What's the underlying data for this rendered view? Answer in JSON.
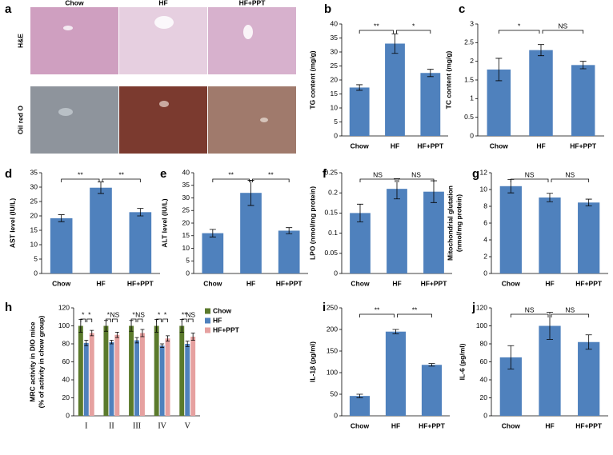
{
  "panel_a": {
    "label": "a",
    "columns": [
      "Chow",
      "HF",
      "HF+PPT"
    ],
    "rows": [
      "H&E",
      "Oil red O"
    ]
  },
  "chart_data": [
    {
      "type": "bar",
      "label": "b",
      "ylabel": "TG content (mg/g)",
      "categories": [
        "Chow",
        "HF",
        "HF+PPT"
      ],
      "values": [
        17.3,
        33,
        22.5
      ],
      "errors": [
        1,
        3.5,
        1.3
      ],
      "color": "#4f81bd",
      "ylim": [
        0,
        40
      ],
      "yticks": [
        0,
        5,
        10,
        15,
        20,
        25,
        30,
        35,
        40
      ],
      "significance": [
        "**",
        "*"
      ]
    },
    {
      "type": "bar",
      "label": "c",
      "ylabel": "TC content (mg/g)",
      "categories": [
        "Chow",
        "HF",
        "HF+PPT"
      ],
      "values": [
        1.78,
        2.3,
        1.9
      ],
      "errors": [
        0.3,
        0.15,
        0.1
      ],
      "color": "#4f81bd",
      "ylim": [
        0,
        3
      ],
      "yticks": [
        0,
        0.5,
        1,
        1.5,
        2,
        2.5,
        3
      ],
      "significance": [
        "*",
        "NS"
      ]
    },
    {
      "type": "bar",
      "label": "d",
      "ylabel": "AST level (IU/L)",
      "categories": [
        "Chow",
        "HF",
        "HF+PPT"
      ],
      "values": [
        19.2,
        29.8,
        21.3
      ],
      "errors": [
        1.2,
        2,
        1.3
      ],
      "color": "#4f81bd",
      "ylim": [
        0,
        35
      ],
      "yticks": [
        0,
        5,
        10,
        15,
        20,
        25,
        30,
        35
      ],
      "significance": [
        "**",
        "**"
      ]
    },
    {
      "type": "bar",
      "label": "e",
      "ylabel": "ALT level (IU/L)",
      "categories": [
        "Chow",
        "HF",
        "HF+PPT"
      ],
      "values": [
        16,
        32,
        17
      ],
      "errors": [
        1.5,
        5,
        1.2
      ],
      "color": "#4f81bd",
      "ylim": [
        0,
        40
      ],
      "yticks": [
        0,
        5,
        10,
        15,
        20,
        25,
        30,
        35,
        40
      ],
      "significance": [
        "**",
        "**"
      ]
    },
    {
      "type": "bar",
      "label": "f",
      "ylabel": "LPO (nmol/mg protein)",
      "categories": [
        "Chow",
        "HF",
        "HF+PPT"
      ],
      "values": [
        0.15,
        0.21,
        0.203
      ],
      "errors": [
        0.022,
        0.025,
        0.027
      ],
      "color": "#4f81bd",
      "ylim": [
        0,
        0.25
      ],
      "yticks": [
        0,
        0.05,
        0.1,
        0.15,
        0.2,
        0.25
      ],
      "significance": [
        "NS",
        "NS"
      ]
    },
    {
      "type": "bar",
      "label": "g",
      "ylabel": [
        "Mitochondrial glutation",
        "(nmol/mg protein)"
      ],
      "categories": [
        "Chow",
        "HF",
        "HF+PPT"
      ],
      "values": [
        10.4,
        9.05,
        8.45
      ],
      "errors": [
        0.8,
        0.5,
        0.4
      ],
      "color": "#4f81bd",
      "ylim": [
        0,
        12
      ],
      "yticks": [
        0,
        2,
        4,
        6,
        8,
        10,
        12
      ],
      "significance": [
        "NS",
        "NS"
      ]
    },
    {
      "type": "grouped_bar",
      "label": "h",
      "ylabel": [
        "MRC activity in DIO mice",
        "(% of activity in chow group)"
      ],
      "categories": [
        "I",
        "II",
        "III",
        "IV",
        "V"
      ],
      "series": [
        {
          "name": "Chow",
          "color": "#5b7a2c",
          "values": [
            100,
            100,
            100,
            100,
            100
          ],
          "errors": [
            7,
            6,
            6,
            7,
            7
          ]
        },
        {
          "name": "HF",
          "color": "#4f81bd",
          "values": [
            81,
            82,
            84,
            78,
            80
          ],
          "errors": [
            3,
            2,
            3,
            2,
            3
          ]
        },
        {
          "name": "HF+PPT",
          "color": "#e6a1a0",
          "values": [
            92,
            90,
            92,
            86,
            88
          ],
          "errors": [
            3,
            3,
            4,
            3,
            4
          ]
        }
      ],
      "ylim": [
        0,
        120
      ],
      "yticks": [
        0,
        20,
        40,
        60,
        80,
        100,
        120
      ],
      "significance": [
        [
          "*",
          "*"
        ],
        [
          "*",
          "NS"
        ],
        [
          "*",
          "NS"
        ],
        [
          "*",
          "*"
        ],
        [
          "**",
          "NS"
        ]
      ]
    },
    {
      "type": "bar",
      "label": "i",
      "ylabel": "IL-1β (pg/ml)",
      "categories": [
        "Chow",
        "HF",
        "HF+PPT"
      ],
      "values": [
        46,
        195,
        118
      ],
      "errors": [
        4,
        5,
        3
      ],
      "color": "#4f81bd",
      "ylim": [
        0,
        250
      ],
      "yticks": [
        0,
        50,
        100,
        150,
        200,
        250
      ],
      "significance": [
        "**",
        "**"
      ]
    },
    {
      "type": "bar",
      "label": "j",
      "ylabel": "IL-6 (pg/ml)",
      "categories": [
        "Chow",
        "HF",
        "HF+PPT"
      ],
      "values": [
        65,
        100,
        82
      ],
      "errors": [
        13,
        15,
        8
      ],
      "color": "#4f81bd",
      "ylim": [
        0,
        120
      ],
      "yticks": [
        0,
        20,
        40,
        60,
        80,
        100,
        120
      ],
      "significance": [
        "NS",
        "NS"
      ]
    }
  ]
}
